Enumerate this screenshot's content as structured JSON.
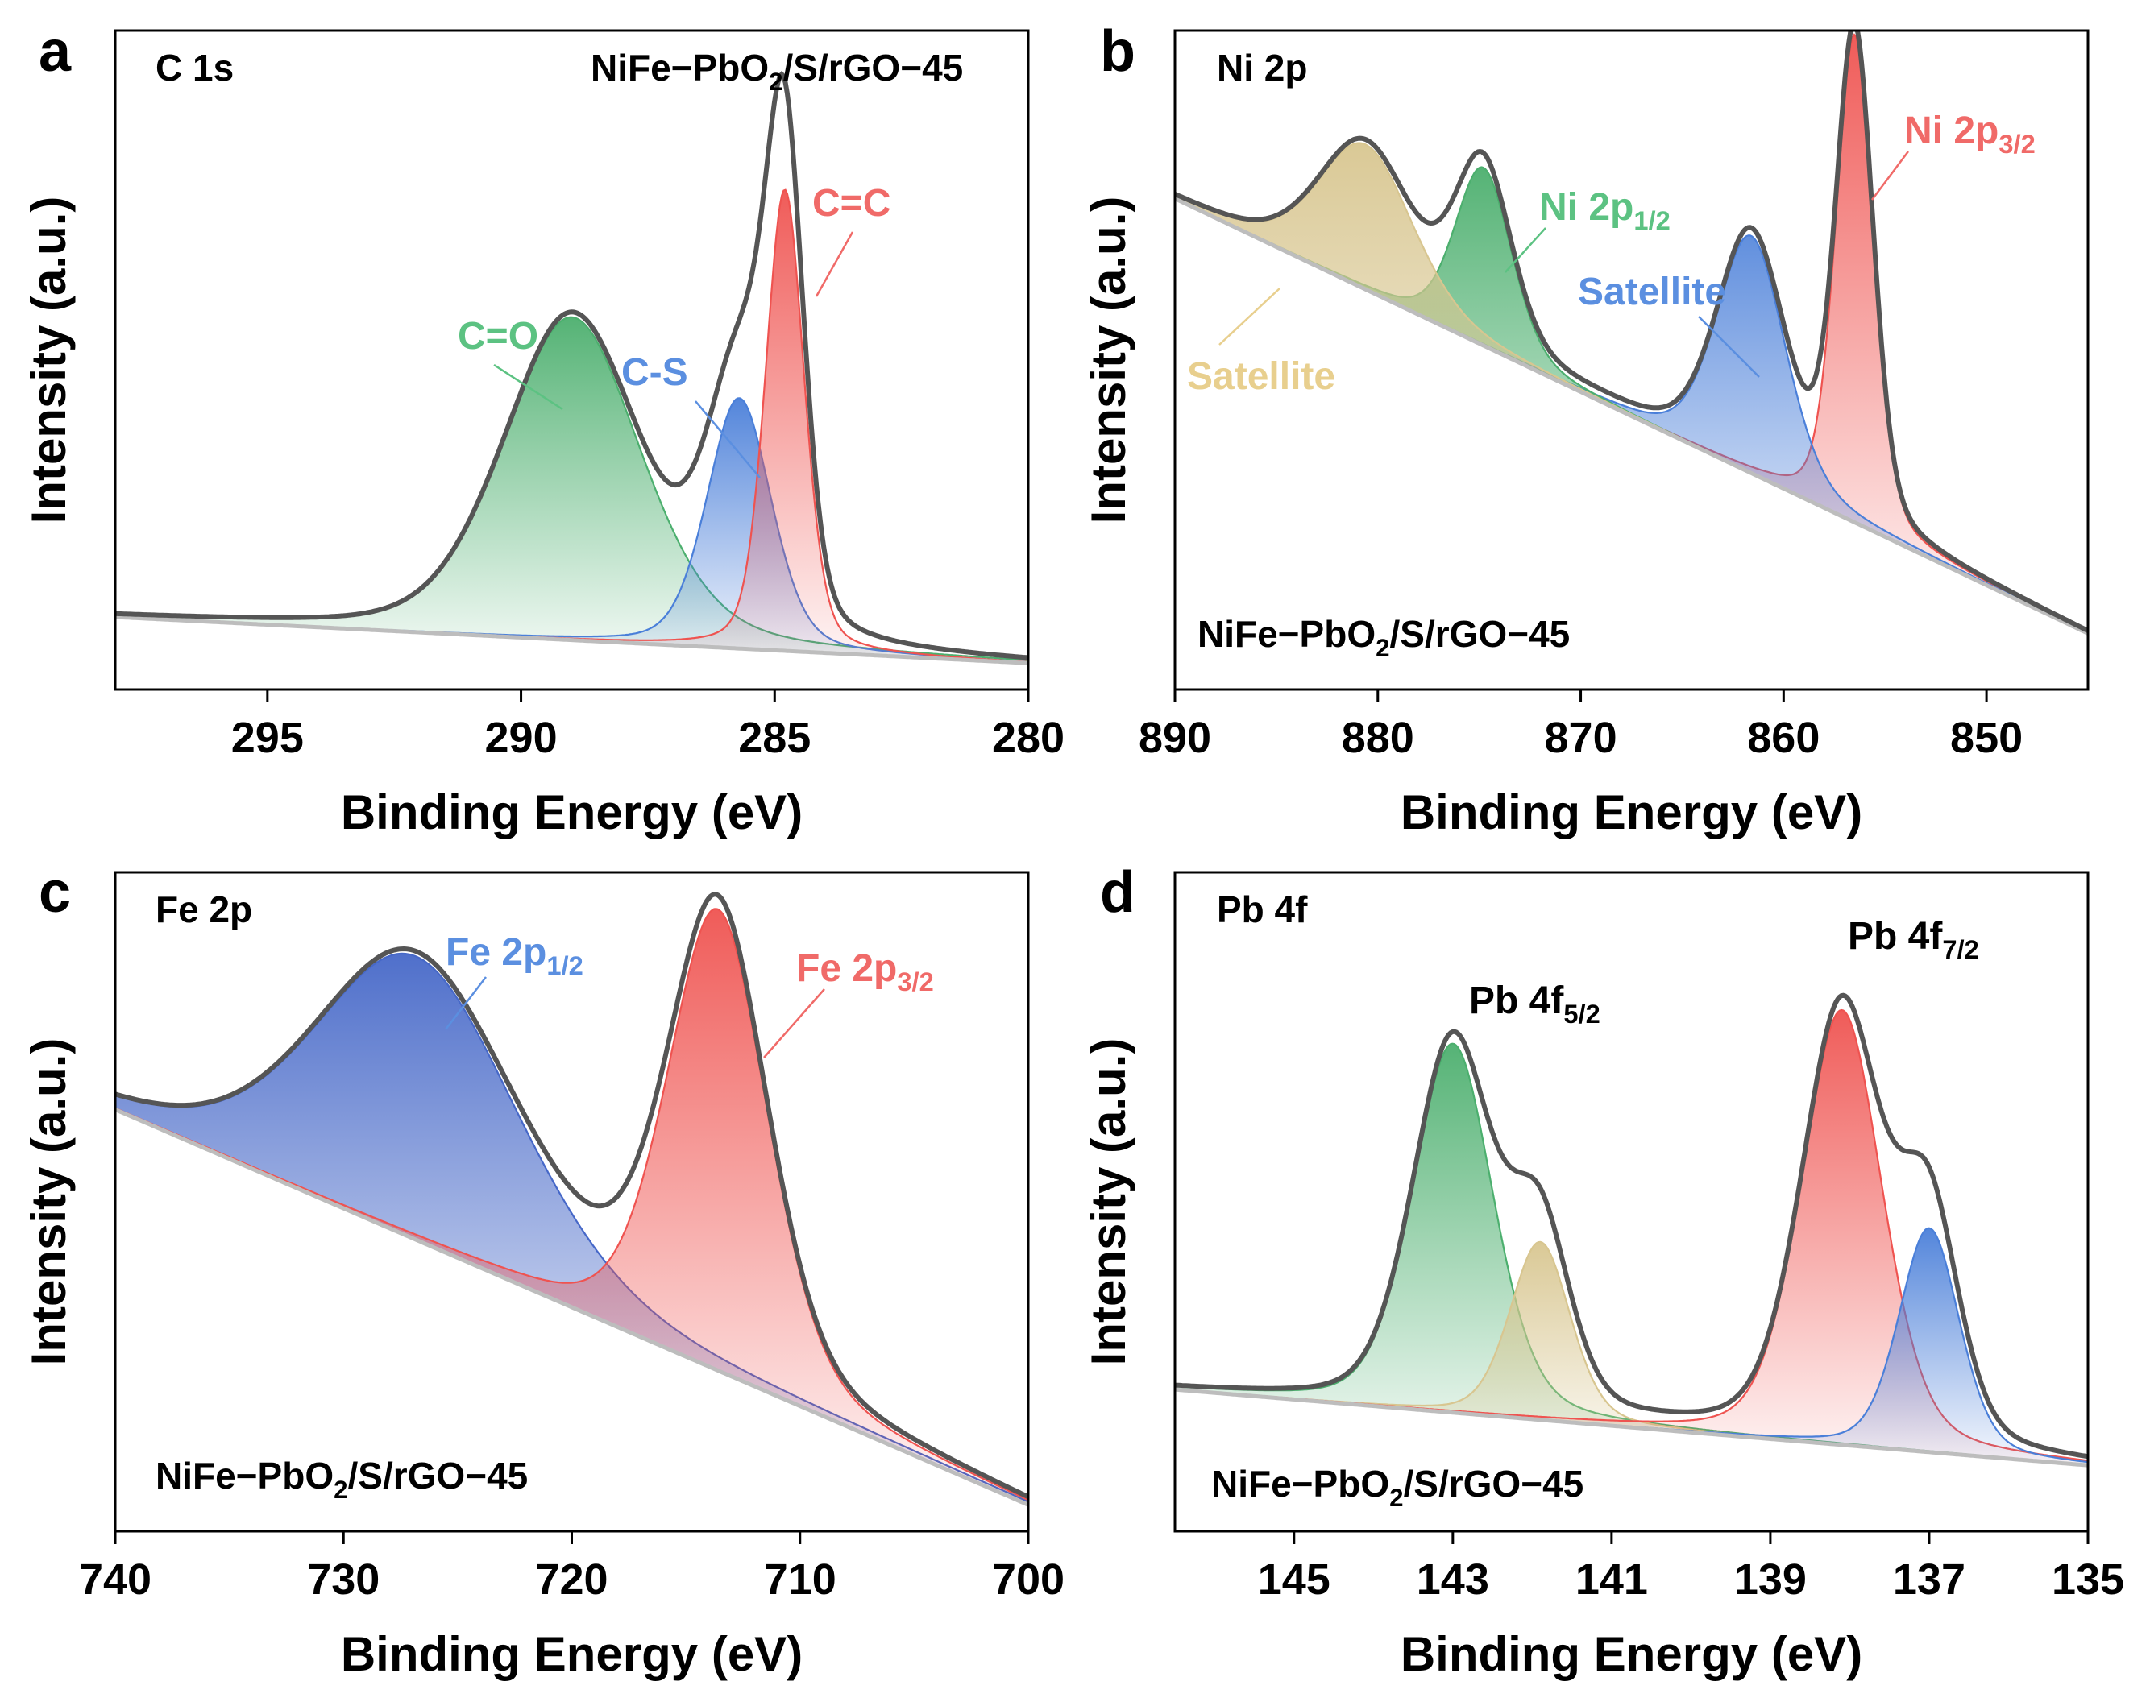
{
  "figure": {
    "ylabel": "Intensity (a.u.)",
    "xlabel": "Binding Energy (eV)"
  },
  "chart_data": [
    {
      "panel": "a",
      "type": "area",
      "region": "C 1s",
      "sample": {
        "main": "NiFe−PbO",
        "sub": "2",
        "tail": "/S/rGO−45"
      },
      "xlabel": "Binding Energy (eV)",
      "ylabel": "Intensity (a.u.)",
      "xlim": [
        298,
        280
      ],
      "ylim": [
        0,
        1.0
      ],
      "xticks": [
        295,
        290,
        285,
        280
      ],
      "baseline": {
        "at_xmin": 0.11,
        "at_xmax": 0.04
      },
      "components": [
        {
          "name": "C=O",
          "center": 289.0,
          "height": 0.49,
          "fwhm": 3.2,
          "color": "#4caf6e",
          "label_color": "#5cc282"
        },
        {
          "name": "C-S",
          "center": 285.7,
          "height": 0.38,
          "fwhm": 1.5,
          "color": "#4a7fd9",
          "label_color": "#5b8fe0"
        },
        {
          "name": "C=C",
          "center": 284.8,
          "height": 0.7,
          "fwhm": 0.9,
          "color": "#ef5350",
          "label_color": "#f06a68"
        }
      ],
      "labels": [
        {
          "text": "C=O",
          "sub": ""
        },
        {
          "text": "C-S",
          "sub": ""
        },
        {
          "text": "C=C",
          "sub": ""
        }
      ]
    },
    {
      "panel": "b",
      "type": "area",
      "region": "Ni 2p",
      "sample": {
        "main": "NiFe−PbO",
        "sub": "2",
        "tail": "/S/rGO−45"
      },
      "xlabel": "Binding Energy (eV)",
      "ylabel": "Intensity (a.u.)",
      "xlim": [
        890,
        845
      ],
      "ylim": [
        0,
        1.0
      ],
      "xticks": [
        890,
        880,
        870,
        860,
        850
      ],
      "baseline": {
        "at_xmin": 0.745,
        "at_xmax": 0.085
      },
      "components": [
        {
          "name": "Ni 2p3/2",
          "center": 856.5,
          "height": 0.74,
          "fwhm": 2.2,
          "color": "#ef5350",
          "label_color": "#f06a68"
        },
        {
          "name": "Satellite",
          "center": 861.6,
          "height": 0.36,
          "fwhm": 4.0,
          "color": "#4a7fd9",
          "label_color": "#5b8fe0"
        },
        {
          "name": "Ni 2p1/2",
          "center": 874.8,
          "height": 0.27,
          "fwhm": 3.3,
          "color": "#4caf6e",
          "label_color": "#5cc282"
        },
        {
          "name": "Satellite",
          "center": 880.6,
          "height": 0.22,
          "fwhm": 5.5,
          "color": "#d8c690",
          "label_color": "#e8cf8e"
        }
      ],
      "labels": [
        {
          "text": "Ni 2p",
          "sub": "3/2"
        },
        {
          "text": "Satellite",
          "sub": ""
        },
        {
          "text": "Ni 2p",
          "sub": "1/2"
        },
        {
          "text": "Satellite",
          "sub": ""
        }
      ]
    },
    {
      "panel": "c",
      "type": "area",
      "region": "Fe 2p",
      "sample": {
        "main": "NiFe−PbO",
        "sub": "2",
        "tail": "/S/rGO−45"
      },
      "xlabel": "Binding Energy (eV)",
      "ylabel": "Intensity (a.u.)",
      "xlim": [
        740,
        700
      ],
      "ylim": [
        0,
        1.0
      ],
      "xticks": [
        740,
        730,
        720,
        710,
        700
      ],
      "baseline": {
        "at_xmin": 0.64,
        "at_xmax": 0.04
      },
      "components": [
        {
          "name": "Fe 2p1/2",
          "center": 726.8,
          "height": 0.43,
          "fwhm": 10.5,
          "color": "#4668c8",
          "label_color": "#5b8fe0"
        },
        {
          "name": "Fe 2p3/2",
          "center": 713.6,
          "height": 0.7,
          "fwhm": 5.2,
          "color": "#ef5350",
          "label_color": "#f06a68"
        }
      ],
      "labels": [
        {
          "text": "Fe 2p",
          "sub": "1/2"
        },
        {
          "text": "Fe 2p",
          "sub": "3/2"
        }
      ]
    },
    {
      "panel": "d",
      "type": "area",
      "region": "Pb 4f",
      "sample": {
        "main": "NiFe−PbO",
        "sub": "2",
        "tail": "/S/rGO−45"
      },
      "xlabel": "Binding Energy (eV)",
      "ylabel": "Intensity (a.u.)",
      "xlim": [
        146.5,
        135
      ],
      "ylim": [
        0,
        1.0
      ],
      "xticks": [
        145,
        143,
        141,
        139,
        137,
        135
      ],
      "baseline": {
        "at_xmin": 0.215,
        "at_xmax": 0.1
      },
      "components": [
        {
          "name": "Pb 4f5/2 (a)",
          "center": 143.0,
          "height": 0.56,
          "fwhm": 1.2,
          "color": "#4caf6e",
          "label_color": "#000000"
        },
        {
          "name": "Pb 4f5/2 (b)",
          "center": 141.9,
          "height": 0.27,
          "fwhm": 0.9,
          "color": "#d8c690",
          "label_color": "#000000"
        },
        {
          "name": "Pb 4f7/2 (a)",
          "center": 138.1,
          "height": 0.66,
          "fwhm": 1.2,
          "color": "#ef5350",
          "label_color": "#000000"
        },
        {
          "name": "Pb 4f7/2 (b)",
          "center": 137.0,
          "height": 0.34,
          "fwhm": 0.9,
          "color": "#4a7fd9",
          "label_color": "#000000"
        }
      ],
      "labels": [
        {
          "text": "Pb 4f",
          "sub": "5/2"
        },
        {
          "text": "Pb 4f",
          "sub": "7/2"
        }
      ]
    }
  ]
}
